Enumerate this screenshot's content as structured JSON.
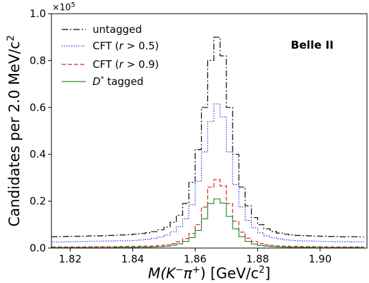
{
  "chart_data": {
    "type": "line",
    "step": true,
    "xlabel_parts": {
      "prefix": "M(K",
      "sup1": "−",
      "mid": "π",
      "sup2": "+",
      "suffix": ") [GeV/c",
      "sup3": "2",
      "end": "]"
    },
    "ylabel_parts": {
      "prefix": "Candidates per 2.0 MeV/c",
      "sup": "2"
    },
    "y_multiplier": {
      "base": "×10",
      "exp": "5"
    },
    "xlim": [
      1.814,
      1.915
    ],
    "ylim": [
      0,
      1.0
    ],
    "xticks": [
      {
        "value": 1.82,
        "label": "1.82"
      },
      {
        "value": 1.84,
        "label": "1.84"
      },
      {
        "value": 1.86,
        "label": "1.86"
      },
      {
        "value": 1.88,
        "label": "1.88"
      },
      {
        "value": 1.9,
        "label": "1.90"
      }
    ],
    "yticks": [
      {
        "value": 0.0,
        "label": "0.0"
      },
      {
        "value": 0.2,
        "label": "0.2"
      },
      {
        "value": 0.4,
        "label": "0.4"
      },
      {
        "value": 0.6,
        "label": "0.6"
      },
      {
        "value": 0.8,
        "label": "0.8"
      },
      {
        "value": 1.0,
        "label": "1.0"
      }
    ],
    "grid": false,
    "legend_position": "top-left",
    "annotation": "Belle II",
    "bin_edges": [
      1.814,
      1.816,
      1.818,
      1.82,
      1.822,
      1.824,
      1.826,
      1.828,
      1.83,
      1.832,
      1.834,
      1.836,
      1.838,
      1.84,
      1.842,
      1.844,
      1.846,
      1.848,
      1.85,
      1.852,
      1.854,
      1.856,
      1.858,
      1.86,
      1.862,
      1.864,
      1.866,
      1.868,
      1.87,
      1.872,
      1.874,
      1.876,
      1.878,
      1.88,
      1.882,
      1.884,
      1.886,
      1.888,
      1.89,
      1.892,
      1.894,
      1.896,
      1.898,
      1.9,
      1.902,
      1.904,
      1.906,
      1.908,
      1.91,
      1.912,
      1.914
    ],
    "series": [
      {
        "name": "untagged",
        "color": "#000000",
        "dash": "9,3,2,3",
        "values": [
          0.048,
          0.049,
          0.049,
          0.05,
          0.05,
          0.051,
          0.052,
          0.052,
          0.053,
          0.054,
          0.055,
          0.056,
          0.057,
          0.059,
          0.062,
          0.065,
          0.07,
          0.078,
          0.09,
          0.11,
          0.14,
          0.19,
          0.28,
          0.42,
          0.6,
          0.8,
          0.9,
          0.82,
          0.6,
          0.4,
          0.26,
          0.18,
          0.13,
          0.1,
          0.082,
          0.071,
          0.064,
          0.059,
          0.056,
          0.054,
          0.053,
          0.052,
          0.051,
          0.05,
          0.049,
          0.049,
          0.048,
          0.048,
          0.048,
          0.047
        ]
      },
      {
        "name": "CFT (r > 0.5)",
        "color": "#2a2ad8",
        "dash": "1.5,2",
        "values": [
          0.026,
          0.026,
          0.027,
          0.027,
          0.028,
          0.028,
          0.029,
          0.029,
          0.03,
          0.03,
          0.031,
          0.031,
          0.032,
          0.033,
          0.035,
          0.037,
          0.041,
          0.047,
          0.056,
          0.07,
          0.092,
          0.125,
          0.185,
          0.285,
          0.41,
          0.54,
          0.615,
          0.56,
          0.41,
          0.27,
          0.175,
          0.118,
          0.086,
          0.065,
          0.052,
          0.044,
          0.039,
          0.035,
          0.033,
          0.031,
          0.03,
          0.03,
          0.029,
          0.028,
          0.028,
          0.027,
          0.027,
          0.027,
          0.026,
          0.026
        ]
      },
      {
        "name": "CFT (r > 0.9)",
        "color": "#e8141c",
        "dash": "6,3",
        "values": [
          0.005,
          0.005,
          0.005,
          0.005,
          0.005,
          0.005,
          0.006,
          0.006,
          0.006,
          0.006,
          0.006,
          0.007,
          0.007,
          0.007,
          0.008,
          0.008,
          0.009,
          0.011,
          0.014,
          0.019,
          0.027,
          0.04,
          0.062,
          0.1,
          0.175,
          0.26,
          0.292,
          0.265,
          0.19,
          0.115,
          0.068,
          0.042,
          0.028,
          0.019,
          0.014,
          0.011,
          0.009,
          0.008,
          0.007,
          0.007,
          0.006,
          0.006,
          0.006,
          0.006,
          0.005,
          0.005,
          0.005,
          0.005,
          0.005,
          0.005
        ]
      },
      {
        "name": "D* tagged",
        "color": "#1f8f2a",
        "dash": "",
        "values": [
          0.002,
          0.002,
          0.002,
          0.002,
          0.002,
          0.002,
          0.002,
          0.002,
          0.002,
          0.002,
          0.003,
          0.003,
          0.003,
          0.003,
          0.004,
          0.004,
          0.005,
          0.006,
          0.008,
          0.012,
          0.018,
          0.028,
          0.045,
          0.075,
          0.125,
          0.19,
          0.21,
          0.192,
          0.135,
          0.082,
          0.048,
          0.028,
          0.017,
          0.011,
          0.008,
          0.006,
          0.005,
          0.004,
          0.003,
          0.003,
          0.003,
          0.003,
          0.002,
          0.002,
          0.002,
          0.002,
          0.002,
          0.002,
          0.002,
          0.002
        ]
      }
    ],
    "legend_labels": [
      {
        "text": "untagged"
      },
      {
        "prefix": "CFT (",
        "var": "r",
        "suffix": " > 0.5)"
      },
      {
        "prefix": "CFT (",
        "var": "r",
        "suffix": " > 0.9)"
      },
      {
        "var": "D",
        "sup": "*",
        "suffix": " tagged"
      }
    ]
  }
}
